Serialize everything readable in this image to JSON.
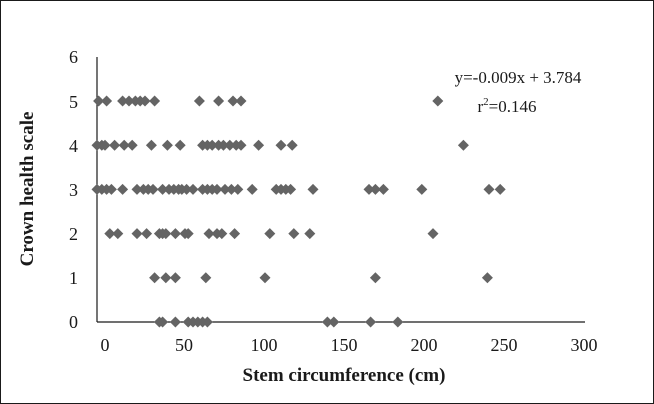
{
  "chart_data": {
    "type": "scatter",
    "xlabel": "Stem circumference (cm)",
    "ylabel": "Crown health scale",
    "xlim": [
      0,
      300
    ],
    "ylim": [
      0,
      6
    ],
    "xticks": [
      "0",
      "50",
      "100",
      "150",
      "200",
      "250",
      "300"
    ],
    "yticks": [
      "0",
      "1",
      "2",
      "3",
      "4",
      "5",
      "6"
    ],
    "grid": false,
    "legend": "none",
    "marker_color": "#646464",
    "annotation": {
      "equation": "y=-0.009x + 3.784",
      "r2_prefix": "r",
      "r2_sup": "2",
      "r2_value": "=0.146"
    },
    "points": [
      {
        "x": -4,
        "y": 5
      },
      {
        "x": 1,
        "y": 5
      },
      {
        "x": 11,
        "y": 5
      },
      {
        "x": 15,
        "y": 5
      },
      {
        "x": 19,
        "y": 5
      },
      {
        "x": 22,
        "y": 5
      },
      {
        "x": 25,
        "y": 5
      },
      {
        "x": 31,
        "y": 5
      },
      {
        "x": 59,
        "y": 5
      },
      {
        "x": 71,
        "y": 5
      },
      {
        "x": 80,
        "y": 5
      },
      {
        "x": 85,
        "y": 5
      },
      {
        "x": 208,
        "y": 5
      },
      {
        "x": -5,
        "y": 4
      },
      {
        "x": -2,
        "y": 4
      },
      {
        "x": 0,
        "y": 4
      },
      {
        "x": 6,
        "y": 4
      },
      {
        "x": 12,
        "y": 4
      },
      {
        "x": 17,
        "y": 4
      },
      {
        "x": 29,
        "y": 4
      },
      {
        "x": 39,
        "y": 4
      },
      {
        "x": 47,
        "y": 4
      },
      {
        "x": 61,
        "y": 4
      },
      {
        "x": 64,
        "y": 4
      },
      {
        "x": 67,
        "y": 4
      },
      {
        "x": 71,
        "y": 4
      },
      {
        "x": 74,
        "y": 4
      },
      {
        "x": 78,
        "y": 4
      },
      {
        "x": 82,
        "y": 4
      },
      {
        "x": 85,
        "y": 4
      },
      {
        "x": 96,
        "y": 4
      },
      {
        "x": 110,
        "y": 4
      },
      {
        "x": 117,
        "y": 4
      },
      {
        "x": 224,
        "y": 4
      },
      {
        "x": -5,
        "y": 3
      },
      {
        "x": -2,
        "y": 3
      },
      {
        "x": 1,
        "y": 3
      },
      {
        "x": 4,
        "y": 3
      },
      {
        "x": 11,
        "y": 3
      },
      {
        "x": 20,
        "y": 3
      },
      {
        "x": 24,
        "y": 3
      },
      {
        "x": 27,
        "y": 3
      },
      {
        "x": 30,
        "y": 3
      },
      {
        "x": 36,
        "y": 3
      },
      {
        "x": 40,
        "y": 3
      },
      {
        "x": 43,
        "y": 3
      },
      {
        "x": 46,
        "y": 3
      },
      {
        "x": 48,
        "y": 3
      },
      {
        "x": 51,
        "y": 3
      },
      {
        "x": 55,
        "y": 3
      },
      {
        "x": 61,
        "y": 3
      },
      {
        "x": 64,
        "y": 3
      },
      {
        "x": 67,
        "y": 3
      },
      {
        "x": 70,
        "y": 3
      },
      {
        "x": 75,
        "y": 3
      },
      {
        "x": 79,
        "y": 3
      },
      {
        "x": 83,
        "y": 3
      },
      {
        "x": 92,
        "y": 3
      },
      {
        "x": 107,
        "y": 3
      },
      {
        "x": 110,
        "y": 3
      },
      {
        "x": 113,
        "y": 3
      },
      {
        "x": 116,
        "y": 3
      },
      {
        "x": 130,
        "y": 3
      },
      {
        "x": 165,
        "y": 3
      },
      {
        "x": 169,
        "y": 3
      },
      {
        "x": 174,
        "y": 3
      },
      {
        "x": 198,
        "y": 3
      },
      {
        "x": 240,
        "y": 3
      },
      {
        "x": 247,
        "y": 3
      },
      {
        "x": 3,
        "y": 2
      },
      {
        "x": 8,
        "y": 2
      },
      {
        "x": 20,
        "y": 2
      },
      {
        "x": 26,
        "y": 2
      },
      {
        "x": 34,
        "y": 2
      },
      {
        "x": 36,
        "y": 2
      },
      {
        "x": 38,
        "y": 2
      },
      {
        "x": 44,
        "y": 2
      },
      {
        "x": 50,
        "y": 2
      },
      {
        "x": 52,
        "y": 2
      },
      {
        "x": 65,
        "y": 2
      },
      {
        "x": 70,
        "y": 2
      },
      {
        "x": 73,
        "y": 2
      },
      {
        "x": 81,
        "y": 2
      },
      {
        "x": 103,
        "y": 2
      },
      {
        "x": 118,
        "y": 2
      },
      {
        "x": 128,
        "y": 2
      },
      {
        "x": 205,
        "y": 2
      },
      {
        "x": 31,
        "y": 1
      },
      {
        "x": 38,
        "y": 1
      },
      {
        "x": 44,
        "y": 1
      },
      {
        "x": 63,
        "y": 1
      },
      {
        "x": 100,
        "y": 1
      },
      {
        "x": 169,
        "y": 1
      },
      {
        "x": 239,
        "y": 1
      },
      {
        "x": 34,
        "y": 0
      },
      {
        "x": 36,
        "y": 0
      },
      {
        "x": 44,
        "y": 0
      },
      {
        "x": 52,
        "y": 0
      },
      {
        "x": 55,
        "y": 0
      },
      {
        "x": 58,
        "y": 0
      },
      {
        "x": 61,
        "y": 0
      },
      {
        "x": 64,
        "y": 0
      },
      {
        "x": 139,
        "y": 0
      },
      {
        "x": 143,
        "y": 0
      },
      {
        "x": 166,
        "y": 0
      },
      {
        "x": 183,
        "y": 0
      }
    ]
  }
}
